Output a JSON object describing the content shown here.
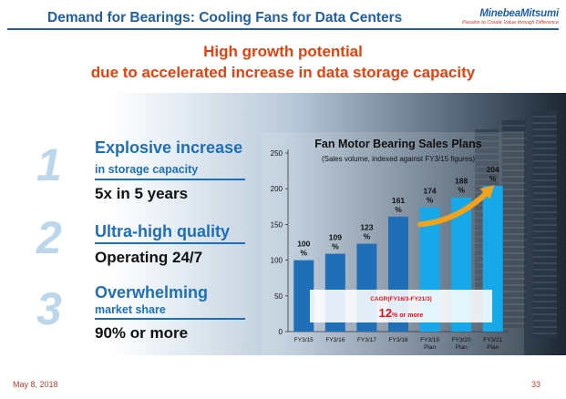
{
  "header": {
    "title": "Demand for Bearings: Cooling Fans for Data Centers",
    "logo_text": "MinebeaMitsumi",
    "logo_tagline": "Passion to Create Value through Difference",
    "accent_color": "#1f5fa5"
  },
  "headline": {
    "line1": "High growth potential",
    "line2": "due to accelerated increase in data storage capacity",
    "color": "#e8400c"
  },
  "points": [
    {
      "number": "1",
      "title": "Explosive increase",
      "subtitle": "in storage capacity",
      "value": "5x in 5 years"
    },
    {
      "number": "2",
      "title": "Ultra-high quality",
      "subtitle": "",
      "value": "Operating 24/7"
    },
    {
      "number": "3",
      "title": "Overwhelming",
      "subtitle": "market share",
      "value": "90% or more"
    }
  ],
  "chart_data": {
    "type": "bar",
    "title": "Fan Motor Bearing Sales Plans",
    "subtitle": "(Sales volume, indexed against FY3/15 figures)",
    "categories": [
      "FY3/15",
      "FY3/16",
      "FY3/17",
      "FY3/18",
      "FY3/19\nPlan",
      "FY3/20\nPlan",
      "FY3/21\nPlan"
    ],
    "values": [
      100,
      109,
      123,
      161,
      174,
      188,
      204
    ],
    "value_labels": [
      "100\n%",
      "109\n%",
      "123\n%",
      "161\n%",
      "174\n%",
      "188\n%",
      "204\n%"
    ],
    "ylim": [
      0,
      250
    ],
    "yticks": [
      0,
      50,
      100,
      150,
      200,
      250
    ],
    "xlabel": "",
    "ylabel": "",
    "actual_color": "#1f6fb8",
    "plan_color": "#16a8e8",
    "arrow_color": "#f5a21b",
    "annotation": {
      "label": "CAGR(FY16/3-FY21/3)",
      "value": "12",
      "unit": "% or more",
      "color": "#e8101e"
    }
  },
  "footer": {
    "date": "May 8, 2018",
    "page": "33"
  }
}
